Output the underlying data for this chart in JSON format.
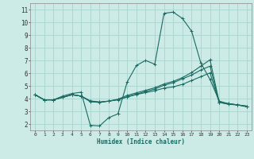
{
  "xlabel": "Humidex (Indice chaleur)",
  "ylabel": "",
  "background_color": "#cceae6",
  "grid_color": "#aad4ce",
  "line_color": "#1a6b62",
  "xlim": [
    -0.5,
    23.5
  ],
  "ylim": [
    1.5,
    11.5
  ],
  "xticks": [
    0,
    1,
    2,
    3,
    4,
    5,
    6,
    7,
    8,
    9,
    10,
    11,
    12,
    13,
    14,
    15,
    16,
    17,
    18,
    19,
    20,
    21,
    22,
    23
  ],
  "yticks": [
    2,
    3,
    4,
    5,
    6,
    7,
    8,
    9,
    10,
    11
  ],
  "series": [
    {
      "x": [
        0,
        1,
        2,
        3,
        4,
        5,
        6,
        7,
        8,
        9,
        10,
        11,
        12,
        13,
        14,
        15,
        16,
        17,
        18,
        19,
        20,
        21,
        22,
        23
      ],
      "y": [
        4.3,
        3.9,
        3.9,
        4.2,
        4.4,
        4.5,
        1.9,
        1.85,
        2.5,
        2.8,
        5.3,
        6.6,
        7.0,
        6.7,
        10.7,
        10.8,
        10.3,
        9.3,
        6.8,
        5.5,
        3.8,
        3.6,
        3.5,
        3.4
      ]
    },
    {
      "x": [
        0,
        1,
        2,
        3,
        4,
        5,
        6,
        7,
        8,
        9,
        10,
        11,
        12,
        13,
        14,
        15,
        16,
        17,
        18,
        19,
        20,
        21,
        22,
        23
      ],
      "y": [
        4.3,
        3.9,
        3.9,
        4.1,
        4.3,
        4.2,
        3.75,
        3.7,
        3.8,
        3.9,
        4.15,
        4.35,
        4.55,
        4.75,
        5.05,
        5.25,
        5.55,
        5.85,
        6.25,
        6.55,
        3.7,
        3.6,
        3.5,
        3.4
      ]
    },
    {
      "x": [
        0,
        1,
        2,
        3,
        4,
        5,
        6,
        7,
        8,
        9,
        10,
        11,
        12,
        13,
        14,
        15,
        16,
        17,
        18,
        19,
        20,
        21,
        22,
        23
      ],
      "y": [
        4.3,
        3.9,
        3.9,
        4.1,
        4.3,
        4.2,
        3.8,
        3.72,
        3.8,
        3.95,
        4.25,
        4.45,
        4.65,
        4.85,
        5.15,
        5.35,
        5.65,
        6.05,
        6.55,
        7.05,
        3.7,
        3.6,
        3.5,
        3.4
      ]
    },
    {
      "x": [
        0,
        1,
        2,
        3,
        4,
        5,
        6,
        7,
        8,
        9,
        10,
        11,
        12,
        13,
        14,
        15,
        16,
        17,
        18,
        19,
        20,
        21,
        22,
        23
      ],
      "y": [
        4.3,
        3.9,
        3.9,
        4.1,
        4.3,
        4.2,
        3.82,
        3.73,
        3.8,
        3.92,
        4.12,
        4.32,
        4.47,
        4.62,
        4.82,
        4.92,
        5.12,
        5.42,
        5.72,
        6.02,
        3.7,
        3.55,
        3.5,
        3.35
      ]
    }
  ]
}
